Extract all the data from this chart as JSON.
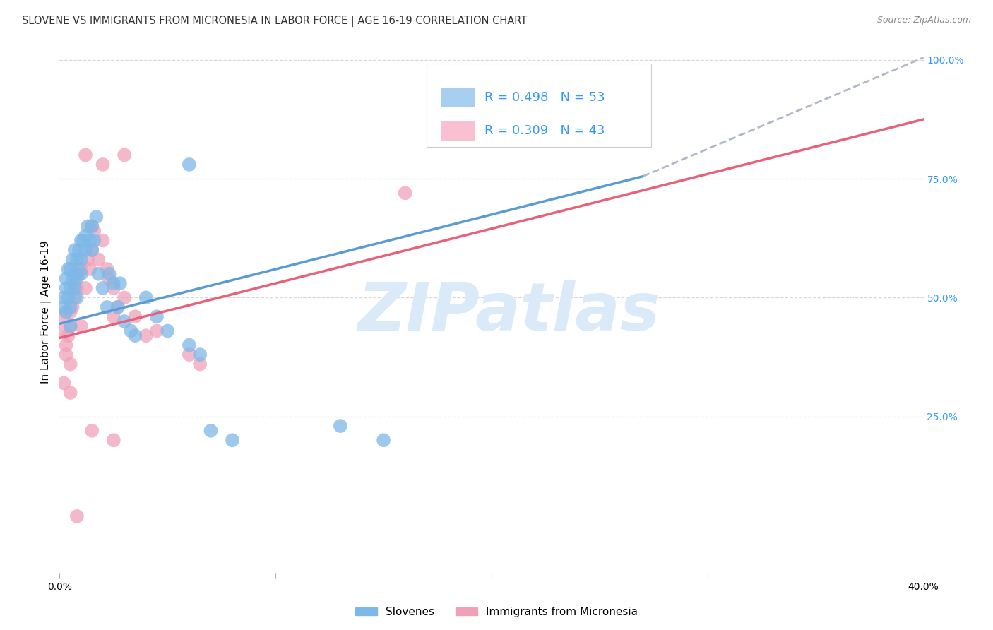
{
  "title": "SLOVENE VS IMMIGRANTS FROM MICRONESIA IN LABOR FORCE | AGE 16-19 CORRELATION CHART",
  "source": "Source: ZipAtlas.com",
  "ylabel": "In Labor Force | Age 16-19",
  "x_min": 0.0,
  "x_max": 0.4,
  "y_min": 0.0,
  "y_max": 1.0,
  "y_tick_positions": [
    0.25,
    0.5,
    0.75,
    1.0
  ],
  "y_tick_labels": [
    "25.0%",
    "50.0%",
    "75.0%",
    "100.0%"
  ],
  "x_tick_positions": [
    0.0,
    0.1,
    0.2,
    0.3,
    0.4
  ],
  "x_tick_labels": [
    "0.0%",
    "",
    "",
    "",
    "40.0%"
  ],
  "slovene_color": "#7eb8e8",
  "micronesia_color": "#f0a0b8",
  "blue_line_color": "#5b9bd5",
  "pink_line_color": "#e8607a",
  "dashed_line_color": "#b0b8c8",
  "grid_color": "#d8d8d8",
  "background_color": "#ffffff",
  "axis_label_color": "#3399ff",
  "title_color": "#333333",
  "source_color": "#888888",
  "watermark_text": "ZIPatlas",
  "watermark_color": "#daeaf8",
  "legend_blue_color": "#a8cef0",
  "legend_pink_color": "#f8c0d0",
  "legend_border_color": "#cccccc",
  "blue_R": "0.498",
  "blue_N": "53",
  "pink_R": "0.309",
  "pink_N": "43",
  "blue_line_x0": 0.0,
  "blue_line_y0": 0.445,
  "blue_line_x1": 0.27,
  "blue_line_y1": 0.755,
  "dashed_line_x0": 0.27,
  "dashed_line_y0": 0.755,
  "dashed_line_x1": 0.4,
  "dashed_line_y1": 1.005,
  "pink_line_x0": 0.0,
  "pink_line_y0": 0.415,
  "pink_line_x1": 0.4,
  "pink_line_y1": 0.875,
  "slovene_x": [
    0.002,
    0.002,
    0.003,
    0.003,
    0.003,
    0.004,
    0.004,
    0.005,
    0.005,
    0.005,
    0.005,
    0.006,
    0.006,
    0.007,
    0.007,
    0.007,
    0.008,
    0.008,
    0.008,
    0.009,
    0.009,
    0.01,
    0.01,
    0.01,
    0.011,
    0.012,
    0.012,
    0.013,
    0.014,
    0.015,
    0.015,
    0.016,
    0.017,
    0.018,
    0.02,
    0.022,
    0.023,
    0.025,
    0.027,
    0.028,
    0.03,
    0.033,
    0.035,
    0.04,
    0.045,
    0.05,
    0.06,
    0.065,
    0.07,
    0.08,
    0.06,
    0.13,
    0.15
  ],
  "slovene_y": [
    0.48,
    0.5,
    0.47,
    0.52,
    0.54,
    0.5,
    0.56,
    0.44,
    0.48,
    0.52,
    0.56,
    0.54,
    0.58,
    0.52,
    0.55,
    0.6,
    0.5,
    0.54,
    0.58,
    0.56,
    0.6,
    0.55,
    0.58,
    0.62,
    0.62,
    0.6,
    0.63,
    0.65,
    0.62,
    0.6,
    0.65,
    0.62,
    0.67,
    0.55,
    0.52,
    0.48,
    0.55,
    0.53,
    0.48,
    0.53,
    0.45,
    0.43,
    0.42,
    0.5,
    0.46,
    0.43,
    0.4,
    0.38,
    0.22,
    0.2,
    0.78,
    0.23,
    0.2
  ],
  "micronesia_x": [
    0.001,
    0.002,
    0.002,
    0.003,
    0.003,
    0.004,
    0.005,
    0.005,
    0.005,
    0.005,
    0.006,
    0.007,
    0.007,
    0.008,
    0.009,
    0.01,
    0.01,
    0.012,
    0.013,
    0.014,
    0.015,
    0.015,
    0.016,
    0.018,
    0.02,
    0.022,
    0.023,
    0.025,
    0.025,
    0.027,
    0.03,
    0.035,
    0.04,
    0.045,
    0.06,
    0.065,
    0.03,
    0.012,
    0.02,
    0.015,
    0.025,
    0.16,
    0.008
  ],
  "micronesia_y": [
    0.43,
    0.46,
    0.32,
    0.4,
    0.38,
    0.42,
    0.47,
    0.44,
    0.36,
    0.3,
    0.48,
    0.53,
    0.5,
    0.52,
    0.55,
    0.56,
    0.44,
    0.52,
    0.58,
    0.56,
    0.65,
    0.6,
    0.64,
    0.58,
    0.62,
    0.56,
    0.54,
    0.52,
    0.46,
    0.48,
    0.5,
    0.46,
    0.42,
    0.43,
    0.38,
    0.36,
    0.8,
    0.8,
    0.78,
    0.22,
    0.2,
    0.72,
    0.04
  ]
}
